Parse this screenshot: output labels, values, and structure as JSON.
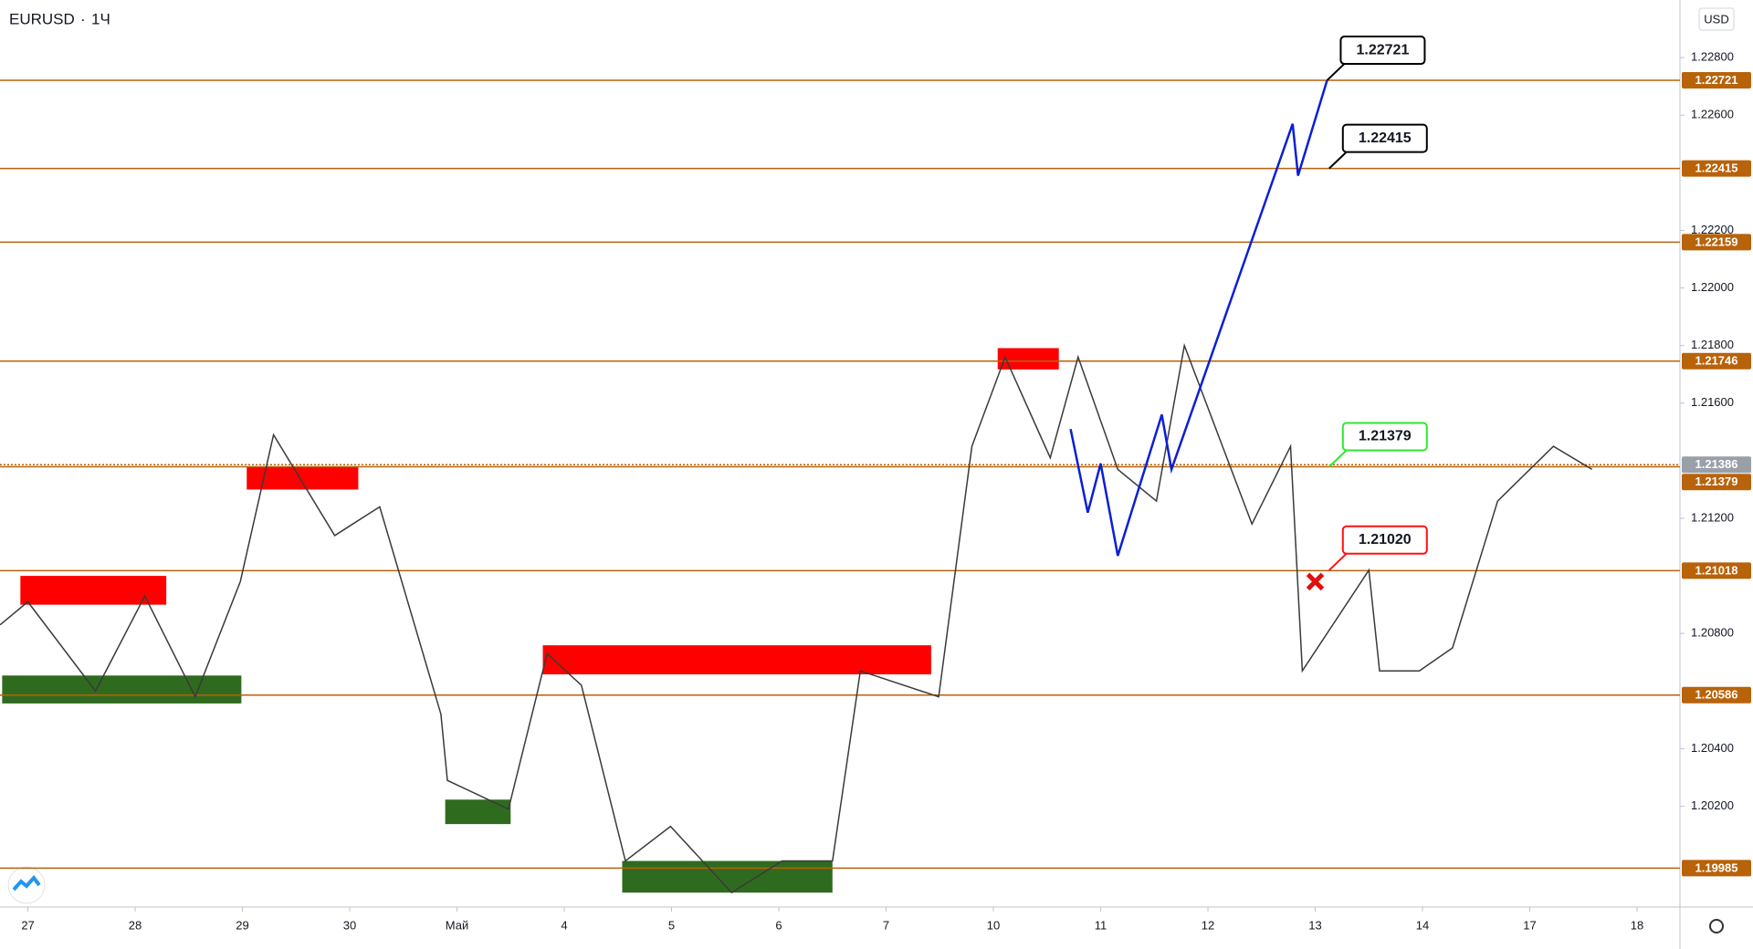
{
  "chart_data": {
    "type": "line",
    "title": "EURUSD",
    "interval": "1Ч",
    "currency": "USD",
    "xlim": [
      -0.26,
      15.4
    ],
    "ylim": [
      1.1985,
      1.23
    ],
    "xticks": [
      {
        "value": 0,
        "label": "27"
      },
      {
        "value": 1,
        "label": "28"
      },
      {
        "value": 2,
        "label": "29"
      },
      {
        "value": 3,
        "label": "30"
      },
      {
        "value": 4,
        "label": "Май"
      },
      {
        "value": 5,
        "label": "4"
      },
      {
        "value": 6,
        "label": "5"
      },
      {
        "value": 7,
        "label": "6"
      },
      {
        "value": 8,
        "label": "7"
      },
      {
        "value": 9,
        "label": "10"
      },
      {
        "value": 10,
        "label": "11"
      },
      {
        "value": 11,
        "label": "12"
      },
      {
        "value": 12,
        "label": "13"
      },
      {
        "value": 13,
        "label": "14"
      },
      {
        "value": 14,
        "label": "17"
      },
      {
        "value": 15,
        "label": "18"
      }
    ],
    "yticks": [
      {
        "value": 1.228,
        "label": "1.22800"
      },
      {
        "value": 1.226,
        "label": "1.22600"
      },
      {
        "value": 1.222,
        "label": "1.22200"
      },
      {
        "value": 1.22,
        "label": "1.22000"
      },
      {
        "value": 1.218,
        "label": "1.21800"
      },
      {
        "value": 1.216,
        "label": "1.21600"
      },
      {
        "value": 1.212,
        "label": "1.21200"
      },
      {
        "value": 1.208,
        "label": "1.20800"
      },
      {
        "value": 1.204,
        "label": "1.20400"
      },
      {
        "value": 1.202,
        "label": "1.20200"
      }
    ],
    "current_price": {
      "value": 1.21386,
      "label": "1.21386"
    },
    "levels": [
      {
        "value": 1.22721,
        "label": "1.22721"
      },
      {
        "value": 1.22415,
        "label": "1.22415"
      },
      {
        "value": 1.22159,
        "label": "1.22159"
      },
      {
        "value": 1.21746,
        "label": "1.21746"
      },
      {
        "value": 1.21379,
        "label": "1.21379"
      },
      {
        "value": 1.21018,
        "label": "1.21018"
      },
      {
        "value": 1.20586,
        "label": "1.20586"
      },
      {
        "value": 1.19985,
        "label": "1.19985"
      }
    ],
    "level_color": "#b8620a",
    "series": [
      {
        "name": "EURUSD",
        "color": "#3a3a3a",
        "x": [
          -0.26,
          0,
          0.63,
          1.09,
          1.56,
          1.98,
          2.29,
          2.86,
          3.28,
          3.85,
          3.91,
          4.48,
          4.84,
          5.16,
          5.57,
          5.99,
          6.56,
          7.03,
          7.5,
          7.76,
          8.49,
          8.8,
          9.11,
          9.53,
          9.79,
          10.16,
          10.52,
          10.78,
          11.41,
          11.77,
          11.88,
          12.5,
          12.6,
          12.97,
          13.28,
          13.7,
          14.22,
          14.58
        ],
        "values": [
          1.2083,
          1.2091,
          1.206,
          1.2093,
          1.2058,
          1.2098,
          1.2149,
          1.2114,
          1.2124,
          1.2052,
          1.2029,
          1.2019,
          1.2073,
          1.2062,
          1.2001,
          1.2013,
          1.199,
          1.2001,
          1.2001,
          1.2067,
          1.2058,
          1.2145,
          1.2176,
          1.2141,
          1.2176,
          1.2137,
          1.2126,
          1.218,
          1.2118,
          1.2145,
          1.2067,
          1.2102,
          1.2067,
          1.2067,
          1.2075,
          1.2126,
          1.2145,
          1.2137
        ]
      },
      {
        "name": "Projection",
        "color": "#0a1fd6",
        "x": [
          9.72,
          9.88,
          10.0,
          10.16,
          10.57,
          10.66,
          11.79,
          11.84,
          12.11
        ],
        "values": [
          1.2151,
          1.2122,
          1.2139,
          1.2107,
          1.2156,
          1.2137,
          1.2257,
          1.2239,
          1.2272
        ]
      }
    ],
    "zones": [
      {
        "color": "#ff0000",
        "x0": -0.07,
        "x1": 1.29,
        "y0": 1.209,
        "y1": 1.21
      },
      {
        "color": "#2f6b1e",
        "x0": -0.24,
        "x1": 1.99,
        "y0": 1.20557,
        "y1": 1.20654
      },
      {
        "color": "#ff0000",
        "x0": 2.04,
        "x1": 3.08,
        "y0": 1.213,
        "y1": 1.2138
      },
      {
        "color": "#2f6b1e",
        "x0": 3.89,
        "x1": 4.5,
        "y0": 1.20138,
        "y1": 1.20223
      },
      {
        "color": "#ff0000",
        "x0": 4.8,
        "x1": 8.42,
        "y0": 1.20658,
        "y1": 1.20759
      },
      {
        "color": "#2f6b1e",
        "x0": 5.54,
        "x1": 7.5,
        "y0": 1.199,
        "y1": 1.2001
      },
      {
        "color": "#ff0000",
        "x0": 9.04,
        "x1": 9.61,
        "y0": 1.21717,
        "y1": 1.21791
      }
    ],
    "stop_marker": {
      "x": 12.0,
      "y": 1.2098,
      "color": "#e01010"
    },
    "callouts": [
      {
        "label": "1.22721",
        "x": 12.11,
        "y": 1.22721,
        "color": "#000000"
      },
      {
        "label": "1.22415",
        "x": 12.13,
        "y": 1.22415,
        "color": "#000000"
      },
      {
        "label": "1.21379",
        "x": 12.13,
        "y": 1.21379,
        "color": "#2ee82e"
      },
      {
        "label": "1.21020",
        "x": 12.13,
        "y": 1.2102,
        "color": "#ff1010"
      }
    ]
  }
}
